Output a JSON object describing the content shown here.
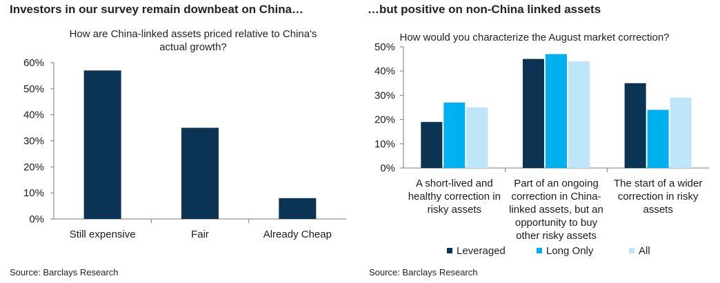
{
  "left_panel": {
    "heading": "Investors in our survey remain downbeat on China…",
    "source": "Source: Barclays Research"
  },
  "right_panel": {
    "heading": "…but positive on non-China linked assets",
    "source": "Source: Barclays Research"
  },
  "colors": {
    "dark_navy": "#0b3454",
    "bright_blue": "#00b0ef",
    "light_blue": "#bde6f8"
  },
  "chart_data": [
    {
      "type": "bar",
      "title": "How are China-linked assets priced relative to China's actual growth?",
      "categories": [
        "Still expensive",
        "Fair",
        "Already Cheap"
      ],
      "values": [
        57,
        35,
        8
      ],
      "ylim": [
        0,
        60
      ],
      "yticks": [
        0,
        10,
        20,
        30,
        40,
        50,
        60
      ],
      "ytick_labels": [
        "0%",
        "10%",
        "20%",
        "30%",
        "40%",
        "50%",
        "60%"
      ],
      "xlabel": "",
      "ylabel": "",
      "grid": false
    },
    {
      "type": "bar",
      "title": "How would you characterize the August market correction?",
      "categories": [
        "A short-lived and healthy correction in risky assets",
        "Part of an ongoing correction in China-linked assets, but an opportunity to buy other risky assets",
        "The start of a wider correction in risky assets"
      ],
      "category_lines": [
        [
          "A short-lived and",
          "healthy correction in",
          "risky assets"
        ],
        [
          "Part of an ongoing",
          "correction in China-",
          "linked assets, but an",
          "opportunity to buy",
          "other risky assets"
        ],
        [
          "The start of a wider",
          "correction in risky",
          "assets"
        ]
      ],
      "series": [
        {
          "name": "Leveraged",
          "values": [
            19,
            45,
            35
          ]
        },
        {
          "name": "Long Only",
          "values": [
            27,
            47,
            24
          ]
        },
        {
          "name": "All",
          "values": [
            25,
            44,
            29
          ]
        }
      ],
      "ylim": [
        0,
        50
      ],
      "yticks": [
        0,
        10,
        20,
        30,
        40,
        50
      ],
      "ytick_labels": [
        "0%",
        "10%",
        "20%",
        "30%",
        "40%",
        "50%"
      ],
      "xlabel": "",
      "ylabel": "",
      "grid": false,
      "legend_position": "bottom"
    }
  ]
}
